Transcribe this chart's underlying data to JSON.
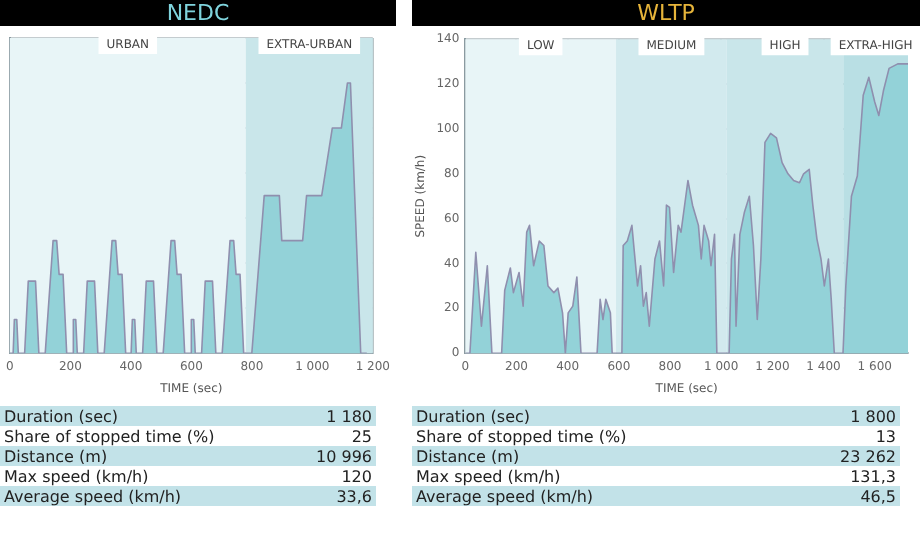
{
  "chart_data": [
    {
      "type": "area",
      "title": "NEDC",
      "xlabel": "TIME (sec)",
      "xlim": [
        0,
        1200
      ],
      "xticks": [
        0,
        200,
        400,
        600,
        800,
        {
          "value": 1000,
          "label": "1 000"
        },
        {
          "value": 1200,
          "label": "1 200"
        }
      ],
      "ylim": [
        0,
        140
      ],
      "yticks": [
        0,
        20,
        40,
        60,
        80,
        100,
        120,
        140
      ],
      "tick_labels": "x",
      "grid": true,
      "x": [
        0,
        11,
        15,
        23,
        28,
        49,
        61,
        85,
        96,
        117,
        143,
        155,
        163,
        176,
        188,
        195,
        206,
        210,
        218,
        223,
        244,
        256,
        280,
        291,
        312,
        338,
        350,
        358,
        371,
        383,
        390,
        401,
        405,
        413,
        418,
        439,
        451,
        475,
        486,
        507,
        533,
        545,
        553,
        566,
        578,
        585,
        596,
        600,
        608,
        613,
        634,
        646,
        670,
        681,
        702,
        728,
        740,
        748,
        761,
        773,
        780,
        800,
        841,
        891,
        899,
        968,
        981,
        1031,
        1066,
        1096,
        1116,
        1126,
        1160,
        1180
      ],
      "series": [
        {
          "color": "#93d2d8",
          "values": [
            0,
            0,
            15,
            15,
            0,
            0,
            32,
            32,
            0,
            0,
            50,
            50,
            35,
            35,
            0,
            0,
            0,
            15,
            15,
            0,
            0,
            32,
            32,
            0,
            0,
            50,
            50,
            35,
            35,
            0,
            0,
            0,
            15,
            15,
            0,
            0,
            32,
            32,
            0,
            0,
            50,
            50,
            35,
            35,
            0,
            0,
            0,
            15,
            15,
            0,
            0,
            32,
            32,
            0,
            0,
            50,
            50,
            35,
            35,
            0,
            0,
            0,
            70,
            70,
            50,
            50,
            70,
            70,
            100,
            100,
            120,
            120,
            0,
            0
          ]
        }
      ],
      "bands": [
        {
          "axis": "x",
          "from": 0,
          "to": 780,
          "label": "URBAN",
          "color": "#e8f5f7"
        },
        {
          "axis": "x",
          "from": 780,
          "to": 1200,
          "label": "EXTRA-URBAN",
          "color": "#c9e6ea"
        }
      ],
      "annotations": [
        "Duration (sec)",
        "1 180",
        "Share of stopped time (%)",
        "25",
        "Distance (m)",
        "10 996",
        "Max speed (km/h)",
        "120",
        "Average speed (km/h)",
        "33,6"
      ]
    },
    {
      "type": "area",
      "title": "WLTP",
      "xlabel": "TIME (sec)",
      "ylabel": "SPEED (km/h)",
      "xlim": [
        0,
        1730
      ],
      "xticks": [
        0,
        200,
        400,
        600,
        800,
        {
          "value": 1000,
          "label": "1 000"
        },
        {
          "value": 1200,
          "label": "1 200"
        },
        {
          "value": 1400,
          "label": "1 400"
        },
        {
          "value": 1600,
          "label": "1 600"
        }
      ],
      "ylim": [
        0,
        140
      ],
      "yticks": [
        0,
        20,
        40,
        60,
        80,
        100,
        120,
        140
      ],
      "grid": true,
      "x": [
        0,
        18,
        41,
        63,
        86,
        104,
        142,
        154,
        176,
        188,
        210,
        226,
        240,
        251,
        267,
        289,
        307,
        323,
        346,
        362,
        380,
        391,
        402,
        420,
        436,
        452,
        515,
        527,
        538,
        549,
        567,
        574,
        589,
        612,
        617,
        633,
        651,
        673,
        685,
        696,
        707,
        719,
        741,
        759,
        775,
        786,
        798,
        814,
        832,
        843,
        870,
        888,
        911,
        922,
        933,
        951,
        960,
        974,
        983,
        1022,
        1031,
        1040,
        1052,
        1058,
        1073,
        1091,
        1110,
        1126,
        1141,
        1155,
        1171,
        1193,
        1216,
        1238,
        1261,
        1283,
        1306,
        1322,
        1344,
        1358,
        1374,
        1390,
        1403,
        1419,
        1430,
        1442,
        1476,
        1487,
        1509,
        1532,
        1555,
        1577,
        1600,
        1616,
        1634,
        1656,
        1690,
        1730
      ],
      "series": [
        {
          "color": "#93d2d8",
          "values": [
            0,
            0,
            45,
            12,
            39,
            0,
            0,
            28,
            38,
            27,
            36,
            21,
            54,
            57,
            39,
            50,
            48,
            30,
            27,
            29,
            18,
            0,
            18,
            21,
            34,
            0,
            0,
            24,
            15,
            24,
            18,
            0,
            0,
            0,
            48,
            50,
            57,
            30,
            39,
            21,
            27,
            12,
            42,
            50,
            30,
            66,
            65,
            36,
            57,
            54,
            77,
            66,
            57,
            42,
            57,
            50,
            39,
            53,
            0,
            0,
            0,
            42,
            53,
            12,
            53,
            63,
            70,
            48,
            15,
            42,
            94,
            98,
            96,
            85,
            80,
            77,
            76,
            80,
            82,
            66,
            51,
            42,
            30,
            42,
            24,
            0,
            0,
            30,
            70,
            79,
            115,
            123,
            112,
            106,
            117,
            127,
            129,
            129
          ]
        }
      ],
      "bands": [
        {
          "axis": "x",
          "from": 0,
          "to": 589,
          "label": "LOW",
          "color": "#e8f5f7"
        },
        {
          "axis": "x",
          "from": 589,
          "to": 1022,
          "label": "MEDIUM",
          "color": "#d2eaee"
        },
        {
          "axis": "x",
          "from": 1022,
          "to": 1477,
          "label": "HIGH",
          "color": "#c9e6ea"
        },
        {
          "axis": "x",
          "from": 1477,
          "to": 1730,
          "label": "EXTRA-HIGH",
          "color": "#b9dfe4"
        }
      ],
      "annotations": [
        "Duration (sec)",
        "1 800",
        "Share of stopped time (%)",
        "13",
        "Distance (m)",
        "23 262",
        "Max speed (km/h)",
        "131,3",
        "Average speed (km/h)",
        "46,5"
      ]
    }
  ]
}
